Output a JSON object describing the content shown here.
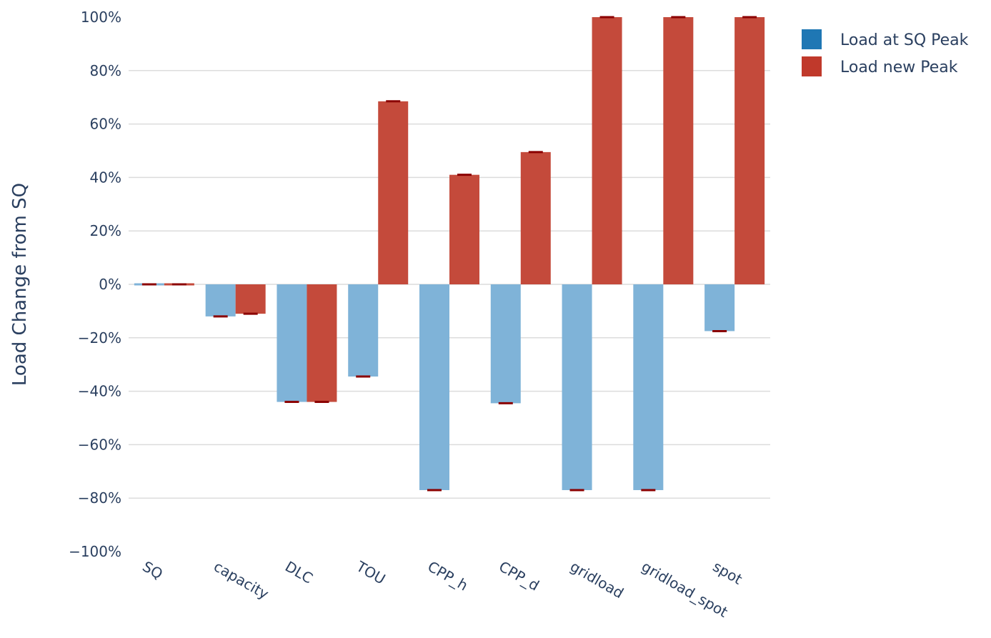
{
  "chart_data": {
    "type": "bar",
    "title": "",
    "xlabel": "",
    "ylabel": "Load Change from SQ",
    "ylim": [
      -100,
      100
    ],
    "y_tick_values": [
      100,
      80,
      60,
      40,
      20,
      0,
      -20,
      -40,
      -60,
      -80,
      -100
    ],
    "y_tick_labels": [
      "100%",
      "80%",
      "60%",
      "40%",
      "20%",
      "0%",
      "−20%",
      "−40%",
      "−60%",
      "−80%",
      "−100%"
    ],
    "categories": [
      "SQ",
      "capacity",
      "DLC",
      "TOU",
      "CPP_h",
      "CPP_d",
      "gridload",
      "gridload_spot",
      "spot"
    ],
    "series": [
      {
        "name": "Load at SQ Peak",
        "color": "#7fb3d8",
        "legend_color": "#1f77b4",
        "values": [
          0,
          -12,
          -44,
          -34.5,
          -77,
          -44.5,
          -77,
          -77,
          -17.5
        ]
      },
      {
        "name": "Load new Peak",
        "color": "#c44a3b",
        "legend_color": "#c0392b",
        "values": [
          0,
          -11,
          -44,
          68.5,
          41,
          49.5,
          100,
          100,
          100
        ]
      }
    ],
    "error_bar_color": "#8b0000",
    "grid": true,
    "legend_position": "top-right"
  }
}
